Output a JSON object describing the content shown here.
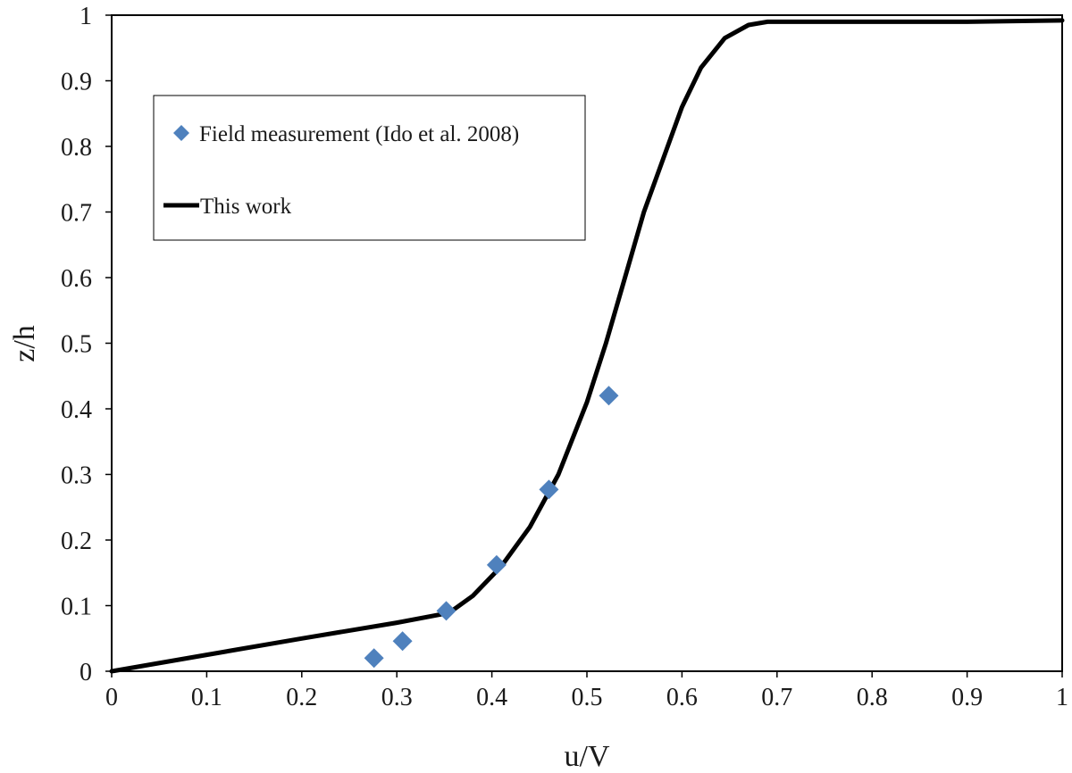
{
  "chart_data": {
    "type": "scatter",
    "xlabel": "u/V",
    "ylabel": "z/h",
    "xlim": [
      0,
      1
    ],
    "ylim": [
      0,
      1
    ],
    "xticks": [
      "0",
      "0.1",
      "0.2",
      "0.3",
      "0.4",
      "0.5",
      "0.6",
      "0.7",
      "0.8",
      "0.9",
      "1"
    ],
    "yticks": [
      "0",
      "0.1",
      "0.2",
      "0.3",
      "0.4",
      "0.5",
      "0.6",
      "0.7",
      "0.8",
      "0.9",
      "1"
    ],
    "grid": false,
    "legend_position": "upper-left",
    "series": [
      {
        "name": "Field measurement (Ido et al. 2008)",
        "kind": "scatter",
        "marker": "diamond",
        "color": "#4f81bd",
        "points": [
          [
            0.276,
            0.02
          ],
          [
            0.306,
            0.046
          ],
          [
            0.352,
            0.092
          ],
          [
            0.405,
            0.162
          ],
          [
            0.46,
            0.277
          ],
          [
            0.523,
            0.42
          ]
        ]
      },
      {
        "name": "This work",
        "kind": "line",
        "color": "#000000",
        "points": [
          [
            0.0,
            0.0
          ],
          [
            0.1,
            0.025
          ],
          [
            0.2,
            0.05
          ],
          [
            0.3,
            0.074
          ],
          [
            0.355,
            0.089
          ],
          [
            0.38,
            0.115
          ],
          [
            0.41,
            0.16
          ],
          [
            0.44,
            0.22
          ],
          [
            0.47,
            0.3
          ],
          [
            0.5,
            0.41
          ],
          [
            0.52,
            0.5
          ],
          [
            0.54,
            0.6
          ],
          [
            0.56,
            0.7
          ],
          [
            0.58,
            0.78
          ],
          [
            0.6,
            0.86
          ],
          [
            0.62,
            0.92
          ],
          [
            0.645,
            0.965
          ],
          [
            0.67,
            0.985
          ],
          [
            0.69,
            0.99
          ],
          [
            0.8,
            0.99
          ],
          [
            0.9,
            0.99
          ],
          [
            1.0,
            0.992
          ]
        ]
      }
    ]
  }
}
